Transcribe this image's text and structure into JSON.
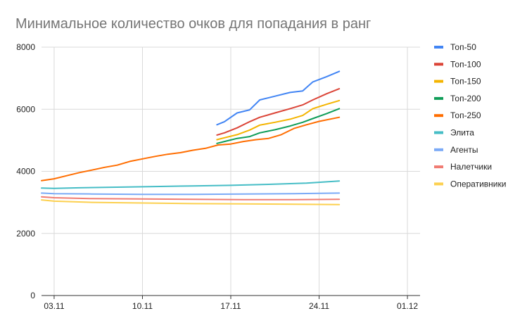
{
  "chart_data": {
    "type": "line",
    "title": "Минимальное количество очков для попадания в ранг",
    "xlabel": "",
    "ylabel": "",
    "x_ticks": [
      "03.11",
      "10.11",
      "17.11",
      "24.11",
      "01.12"
    ],
    "x_tick_values": [
      3,
      10,
      17,
      24,
      31
    ],
    "xlim": [
      2,
      32
    ],
    "ylim": [
      0,
      8000
    ],
    "y_ticks": [
      0,
      2000,
      4000,
      6000,
      8000
    ],
    "grid": true,
    "legend_position": "right",
    "series": [
      {
        "name": "Топ-50",
        "color": "#4285f4",
        "points": [
          [
            15.9,
            5500
          ],
          [
            16.5,
            5600
          ],
          [
            17.5,
            5880
          ],
          [
            18.5,
            5980
          ],
          [
            19.3,
            6300
          ],
          [
            20.5,
            6420
          ],
          [
            21.7,
            6540
          ],
          [
            22.7,
            6590
          ],
          [
            23.5,
            6880
          ],
          [
            24.6,
            7050
          ],
          [
            25.6,
            7220
          ]
        ]
      },
      {
        "name": "Топ-100",
        "color": "#db4437",
        "points": [
          [
            15.9,
            5170
          ],
          [
            16.5,
            5240
          ],
          [
            17.5,
            5400
          ],
          [
            18.5,
            5600
          ],
          [
            19.3,
            5740
          ],
          [
            20.5,
            5880
          ],
          [
            21.7,
            6020
          ],
          [
            22.7,
            6140
          ],
          [
            23.5,
            6300
          ],
          [
            24.6,
            6500
          ],
          [
            25.6,
            6660
          ]
        ]
      },
      {
        "name": "Топ-150",
        "color": "#f4b400",
        "points": [
          [
            15.9,
            5020
          ],
          [
            16.5,
            5080
          ],
          [
            17.5,
            5180
          ],
          [
            18.5,
            5330
          ],
          [
            19.3,
            5490
          ],
          [
            20.5,
            5580
          ],
          [
            21.7,
            5680
          ],
          [
            22.7,
            5800
          ],
          [
            23.5,
            6020
          ],
          [
            24.6,
            6160
          ],
          [
            25.6,
            6280
          ]
        ]
      },
      {
        "name": "Топ-200",
        "color": "#0f9d58",
        "points": [
          [
            15.9,
            4900
          ],
          [
            16.5,
            4960
          ],
          [
            17.5,
            5060
          ],
          [
            18.5,
            5120
          ],
          [
            19.3,
            5240
          ],
          [
            20.5,
            5340
          ],
          [
            21.7,
            5460
          ],
          [
            22.7,
            5580
          ],
          [
            23.5,
            5700
          ],
          [
            24.6,
            5860
          ],
          [
            25.6,
            6020
          ]
        ]
      },
      {
        "name": "Топ-250",
        "color": "#ff6d00",
        "points": [
          [
            2,
            3700
          ],
          [
            3,
            3760
          ],
          [
            4,
            3860
          ],
          [
            5,
            3960
          ],
          [
            6,
            4040
          ],
          [
            7,
            4130
          ],
          [
            8,
            4200
          ],
          [
            9,
            4320
          ],
          [
            10,
            4400
          ],
          [
            11,
            4480
          ],
          [
            12,
            4550
          ],
          [
            13,
            4600
          ],
          [
            14,
            4680
          ],
          [
            15,
            4740
          ],
          [
            16,
            4850
          ],
          [
            17,
            4880
          ],
          [
            18,
            4960
          ],
          [
            19,
            5020
          ],
          [
            20,
            5060
          ],
          [
            21,
            5180
          ],
          [
            22,
            5380
          ],
          [
            23,
            5500
          ],
          [
            24,
            5610
          ],
          [
            25.6,
            5740
          ]
        ]
      },
      {
        "name": "Элита",
        "color": "#46bdc6",
        "points": [
          [
            2,
            3460
          ],
          [
            3,
            3450
          ],
          [
            5,
            3470
          ],
          [
            8,
            3490
          ],
          [
            11,
            3510
          ],
          [
            14,
            3530
          ],
          [
            17,
            3550
          ],
          [
            20,
            3580
          ],
          [
            23,
            3620
          ],
          [
            25.6,
            3690
          ]
        ]
      },
      {
        "name": "Агенты",
        "color": "#7baaf7",
        "points": [
          [
            2,
            3300
          ],
          [
            3,
            3280
          ],
          [
            6,
            3270
          ],
          [
            10,
            3260
          ],
          [
            14,
            3260
          ],
          [
            18,
            3270
          ],
          [
            22,
            3280
          ],
          [
            25.6,
            3300
          ]
        ]
      },
      {
        "name": "Налетчики",
        "color": "#f07b72",
        "points": [
          [
            2,
            3180
          ],
          [
            3,
            3150
          ],
          [
            6,
            3120
          ],
          [
            10,
            3110
          ],
          [
            14,
            3100
          ],
          [
            18,
            3090
          ],
          [
            22,
            3090
          ],
          [
            25.6,
            3100
          ]
        ]
      },
      {
        "name": "Оперативники",
        "color": "#fcd04f",
        "points": [
          [
            2,
            3080
          ],
          [
            3,
            3040
          ],
          [
            6,
            3000
          ],
          [
            10,
            2980
          ],
          [
            14,
            2960
          ],
          [
            18,
            2950
          ],
          [
            22,
            2940
          ],
          [
            25.6,
            2930
          ]
        ]
      }
    ]
  }
}
